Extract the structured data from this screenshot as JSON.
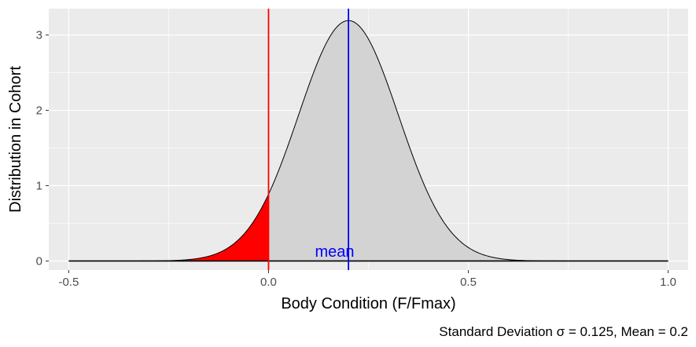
{
  "chart_data": {
    "type": "area",
    "title": "",
    "xlabel": "Body Condition (F/Fmax)",
    "ylabel": "Distribution in Cohort",
    "caption": "Standard Deviation σ = 0.125, Mean = 0.2",
    "xlim": [
      -0.55,
      1.05
    ],
    "ylim": [
      -0.12,
      3.35
    ],
    "x_ticks": [
      -0.5,
      0.0,
      0.5,
      1.0
    ],
    "x_tick_labels": [
      "-0.5",
      "0.0",
      "0.5",
      "1.0"
    ],
    "y_ticks": [
      0,
      1,
      2,
      3
    ],
    "y_tick_labels": [
      "0",
      "1",
      "2",
      "3"
    ],
    "distribution": {
      "kind": "normal",
      "mean": 0.2,
      "sd": 0.125,
      "x_min": -0.5,
      "x_max": 1.0
    },
    "shaded_region": {
      "from": -0.5,
      "to": 0.0,
      "color": "#ff0000"
    },
    "curve_fill_color": "#d3d3d3",
    "vlines": [
      {
        "x": 0.0,
        "color": "#ff0000"
      },
      {
        "x": 0.2,
        "color": "#0000ff"
      }
    ],
    "annotations": [
      {
        "text": "mean",
        "x": 0.13,
        "y": 0.08,
        "color": "#0000ff"
      }
    ],
    "grid": true,
    "panel_background": "#ebebeb",
    "grid_color": "#ffffff"
  }
}
